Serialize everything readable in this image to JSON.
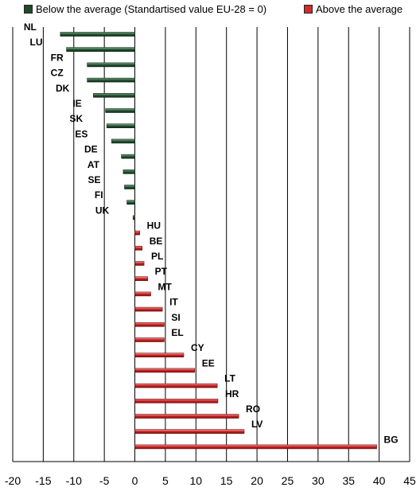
{
  "legend": [
    {
      "label": "Below the average (Standartised value EU-28 = 0)",
      "color": "#1e4a2a"
    },
    {
      "label": "Above the average",
      "color": "#d42a2a"
    }
  ],
  "chart_data": {
    "type": "bar",
    "orientation": "horizontal",
    "xlim": [
      -20,
      45
    ],
    "x_ticks": [
      -20,
      -15,
      -10,
      -5,
      0,
      5,
      10,
      15,
      20,
      25,
      30,
      35,
      40,
      45
    ],
    "grid": "vertical",
    "legend_position": "top",
    "series": [
      {
        "name": "Below the average (Standartised value EU-28 = 0)",
        "color": "#1e4a2a",
        "categories": [
          "NL",
          "LU",
          "FR",
          "CZ",
          "DK",
          "IE",
          "SK",
          "ES",
          "DE",
          "AT",
          "SE",
          "FI",
          "UK"
        ],
        "values": [
          -12.2,
          -11.2,
          -7.8,
          -7.8,
          -6.8,
          -4.8,
          -4.6,
          -3.8,
          -2.2,
          -1.9,
          -1.7,
          -1.3,
          -0.3
        ]
      },
      {
        "name": "Above the average",
        "color": "#d42a2a",
        "categories": [
          "HU",
          "BE",
          "PL",
          "PT",
          "MT",
          "IT",
          "SI",
          "EL",
          "CY",
          "EE",
          "LT",
          "HR",
          "RO",
          "LV",
          "BG"
        ],
        "values": [
          0.8,
          1.2,
          1.5,
          2.1,
          2.6,
          4.5,
          4.8,
          4.8,
          8.0,
          9.8,
          13.5,
          13.6,
          17.0,
          17.9,
          39.6
        ]
      }
    ]
  }
}
